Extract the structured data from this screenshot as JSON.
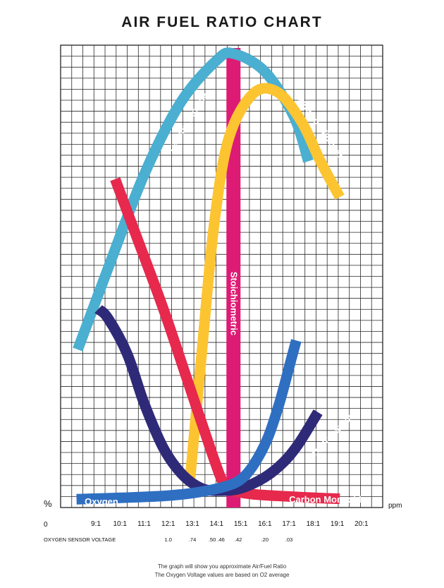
{
  "chart_data": {
    "type": "line",
    "title": "AIR FUEL RATIO CHART",
    "xlabel": "",
    "ylabel": "%",
    "y_unit_right": "ppm",
    "origin_label": "0",
    "x_ticks": [
      "9:1",
      "10:1",
      "11:1",
      "12:1",
      "13:1",
      "14:1",
      "15:1",
      "16:1",
      "17:1",
      "18:1",
      "19:1",
      "20:1"
    ],
    "xlim": [
      8.3,
      20.5
    ],
    "ylim": [
      0,
      100
    ],
    "grid": true,
    "stoichiometric": {
      "label": "Stoichiometric",
      "x": 14.7
    },
    "oxygen_sensor_voltage": {
      "label": "OXYGEN SENSOR VOLTAGE",
      "readings": [
        {
          "ratio": 12,
          "text": "1.0"
        },
        {
          "ratio": 13,
          "text": ".74"
        },
        {
          "ratio": 14,
          "text": ".50 .46"
        },
        {
          "ratio": 14.9,
          "text": ".42"
        },
        {
          "ratio": 16,
          "text": ".20"
        },
        {
          "ratio": 17,
          "text": ".03"
        }
      ]
    },
    "series": [
      {
        "name": "Carbon Dioxide",
        "color": "#4aafd0",
        "points": [
          [
            8.25,
            34
          ],
          [
            9.5,
            52
          ],
          [
            11,
            73
          ],
          [
            12.5,
            89
          ],
          [
            14,
            98.5
          ],
          [
            14.7,
            100
          ],
          [
            16,
            96
          ],
          [
            17.2,
            86
          ],
          [
            17.8,
            76
          ]
        ]
      },
      {
        "name": "Oxides of Nitrogen",
        "color": "#fcc431",
        "points": [
          [
            12.9,
            5
          ],
          [
            13.4,
            34
          ],
          [
            13.9,
            62
          ],
          [
            14.5,
            81
          ],
          [
            15.5,
            91
          ],
          [
            16.5,
            91.5
          ],
          [
            17.5,
            85
          ],
          [
            18.3,
            76
          ],
          [
            19.1,
            68
          ]
        ]
      },
      {
        "name": "Carbon Monoxide",
        "color": "#e6294c",
        "points": [
          [
            9.8,
            72
          ],
          [
            10.7,
            59
          ],
          [
            11.8,
            43
          ],
          [
            12.8,
            27
          ],
          [
            13.8,
            11
          ],
          [
            14.3,
            4
          ],
          [
            14.7,
            2.5
          ],
          [
            15.5,
            1.7
          ],
          [
            17,
            1.2
          ],
          [
            18.5,
            0.8
          ],
          [
            19.1,
            0.7
          ]
        ]
      },
      {
        "name": "Hydrocarbons",
        "color": "#2f2a78",
        "points": [
          [
            9.1,
            43
          ],
          [
            9.5,
            41
          ],
          [
            10.3,
            33
          ],
          [
            11,
            22
          ],
          [
            11.8,
            12
          ],
          [
            12.6,
            6
          ],
          [
            13.4,
            3
          ],
          [
            14.2,
            2.5
          ],
          [
            15,
            3
          ],
          [
            16,
            5.5
          ],
          [
            16.8,
            9
          ],
          [
            17.4,
            13
          ],
          [
            18.2,
            20
          ]
        ]
      },
      {
        "name": "Oxygen",
        "color": "#2f6fc2",
        "points": [
          [
            8.2,
            0.6
          ],
          [
            10,
            0.9
          ],
          [
            12,
            1.4
          ],
          [
            13.3,
            2.2
          ],
          [
            14.4,
            3.5
          ],
          [
            15,
            5
          ],
          [
            15.5,
            8
          ],
          [
            16.1,
            14
          ],
          [
            16.6,
            22
          ],
          [
            17.1,
            32
          ],
          [
            17.3,
            36
          ]
        ]
      }
    ]
  },
  "footnote": {
    "line1": "The graph will show you approximate Air/Fuel Ratio",
    "line2": "The Oxygen Voltage values are based on O2 average"
  }
}
